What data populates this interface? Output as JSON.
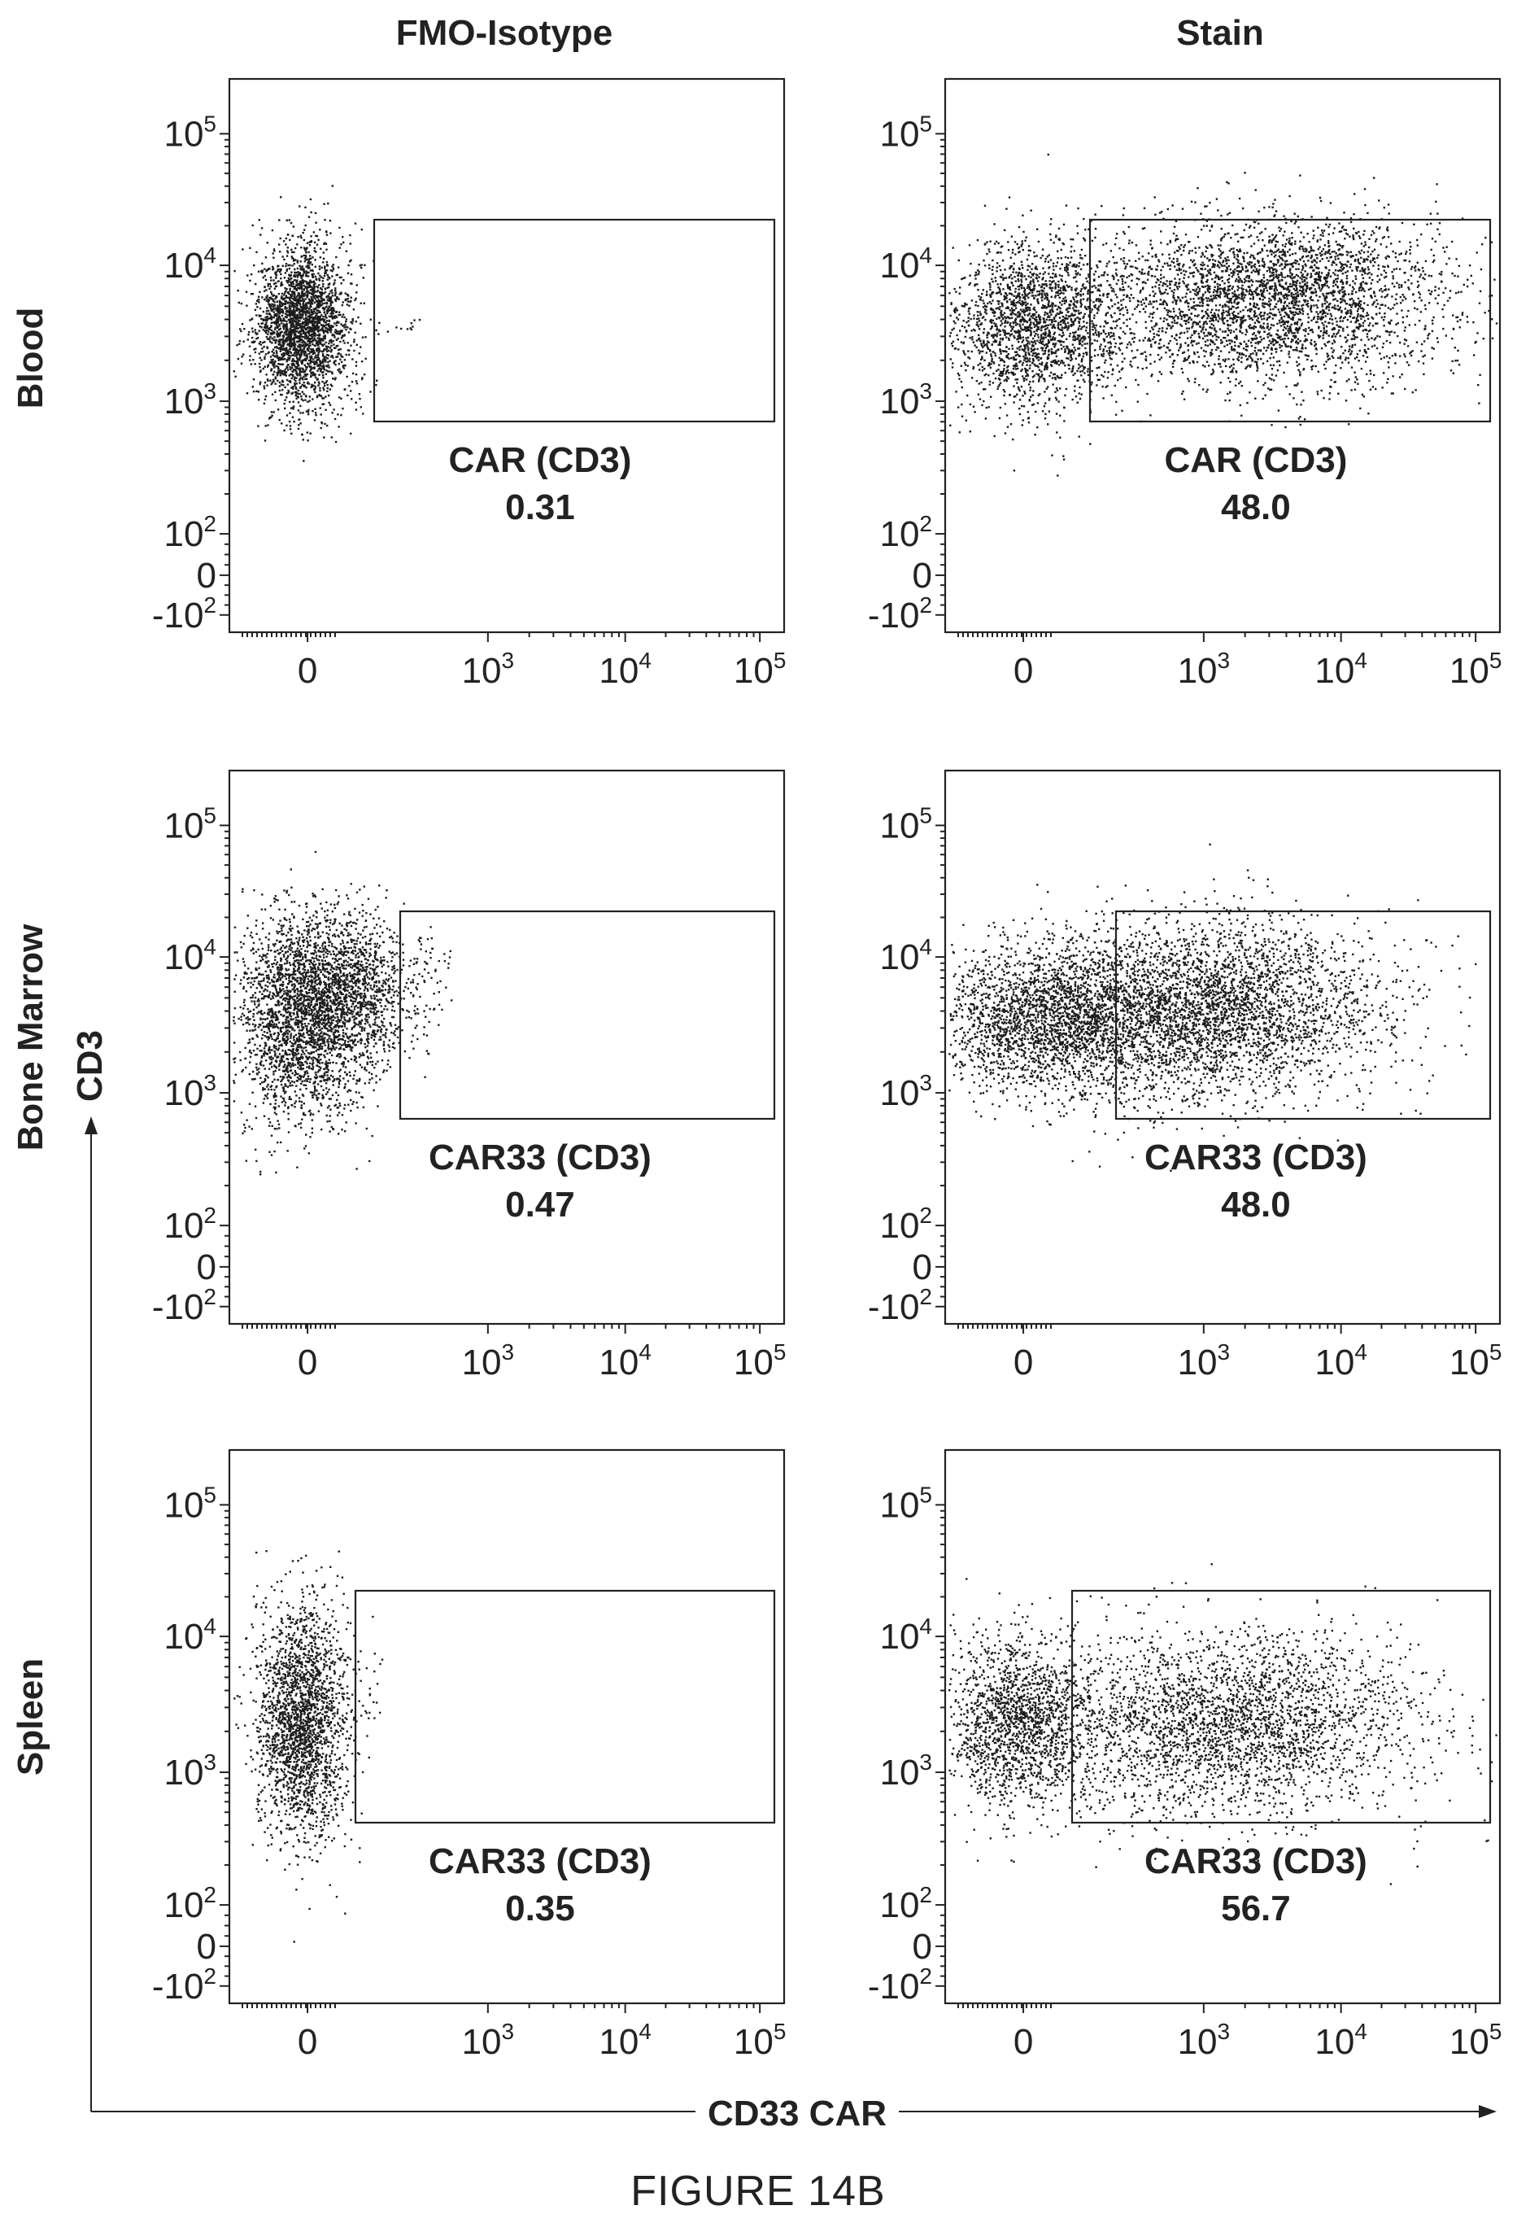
{
  "figure_caption": "FIGURE 14B",
  "columns": [
    "FMO-Isotype",
    "Stain"
  ],
  "rows": [
    "Blood",
    "Bone Marrow",
    "Spleen"
  ],
  "y_axis_label": "CD3",
  "x_axis_label": "CD33 CAR",
  "x_tick_labels": [
    "0",
    "10^3",
    "10^4",
    "10^5"
  ],
  "y_tick_labels": [
    "10^5",
    "10^4",
    "10^3",
    "10^2",
    "0",
    "-10^2"
  ],
  "chart_data": [
    {
      "type": "scatter",
      "row": "Blood",
      "column": "FMO-Isotype",
      "gate_name": "CAR (CD3)",
      "gate_value": "0.31"
    },
    {
      "type": "scatter",
      "row": "Blood",
      "column": "Stain",
      "gate_name": "CAR (CD3)",
      "gate_value": "48.0"
    },
    {
      "type": "scatter",
      "row": "Bone Marrow",
      "column": "FMO-Isotype",
      "gate_name": "CAR33 (CD3)",
      "gate_value": "0.47"
    },
    {
      "type": "scatter",
      "row": "Bone Marrow",
      "column": "Stain",
      "gate_name": "CAR33 (CD3)",
      "gate_value": "48.0"
    },
    {
      "type": "scatter",
      "row": "Spleen",
      "column": "FMO-Isotype",
      "gate_name": "CAR33 (CD3)",
      "gate_value": "0.35"
    },
    {
      "type": "scatter",
      "row": "Spleen",
      "column": "Stain",
      "gate_name": "CAR33 (CD3)",
      "gate_value": "56.7"
    }
  ]
}
